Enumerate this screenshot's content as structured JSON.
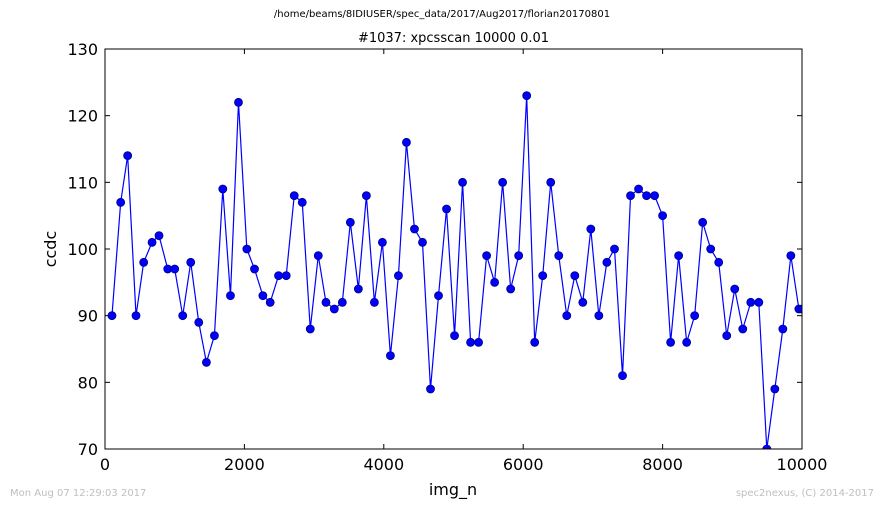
{
  "header": {
    "path": "/home/beams/8IDIUSER/spec_data/2017/Aug2017/florian20170801"
  },
  "footer": {
    "timestamp": "Mon Aug 07 12:29:03 2017",
    "credit": "spec2nexus, (C) 2014-2017"
  },
  "colors": {
    "series": "#0000ff",
    "marker_edge": "#000080",
    "footer_text": "#bfbfbf"
  },
  "chart_data": {
    "type": "line",
    "title": "#1037: xpcsscan 10000 0.01",
    "xlabel": "img_n",
    "ylabel": "ccdc",
    "xlim": [
      0,
      10000
    ],
    "ylim": [
      70,
      130
    ],
    "x_ticks": [
      0,
      2000,
      4000,
      6000,
      8000,
      10000
    ],
    "y_ticks": [
      70,
      80,
      90,
      100,
      110,
      120,
      130
    ],
    "grid": false,
    "marker": "circle",
    "series": [
      {
        "x": [
          100,
          225,
          325,
          445,
          555,
          675,
          775,
          900,
          1000,
          1115,
          1230,
          1345,
          1455,
          1570,
          1690,
          1800,
          1915,
          2035,
          2145,
          2265,
          2370,
          2490,
          2600,
          2715,
          2830,
          2945,
          3060,
          3170,
          3290,
          3405,
          3520,
          3635,
          3750,
          3865,
          3980,
          4095,
          4210,
          4325,
          4440,
          4555,
          4670,
          4785,
          4900,
          5015,
          5130,
          5245,
          5360,
          5475,
          5590,
          5705,
          5820,
          5935,
          6050,
          6165,
          6280,
          6395,
          6510,
          6625,
          6740,
          6855,
          6970,
          7085,
          7200,
          7310,
          7425,
          7540,
          7655,
          7770,
          7885,
          8000,
          8115,
          8230,
          8345,
          8460,
          8575,
          8690,
          8805,
          8920,
          9035,
          9150,
          9265,
          9380,
          9495,
          9610,
          9725,
          9840,
          9955,
          10000
        ],
        "values": [
          90,
          107,
          114,
          90,
          98,
          101,
          102,
          97,
          97,
          90,
          98,
          89,
          83,
          87,
          109,
          93,
          122,
          100,
          97,
          93,
          92,
          96,
          96,
          108,
          107,
          88,
          99,
          92,
          91,
          92,
          104,
          94,
          108,
          92,
          101,
          84,
          96,
          116,
          103,
          101,
          79,
          93,
          106,
          87,
          110,
          86,
          86,
          99,
          95,
          110,
          94,
          99,
          123,
          86,
          96,
          110,
          99,
          90,
          96,
          92,
          103,
          90,
          98,
          100,
          81,
          108,
          109,
          108,
          108,
          105,
          86,
          99,
          86,
          90,
          104,
          100,
          98,
          87,
          94,
          88,
          92,
          92,
          70,
          79,
          88,
          99,
          91,
          91
        ]
      }
    ]
  }
}
